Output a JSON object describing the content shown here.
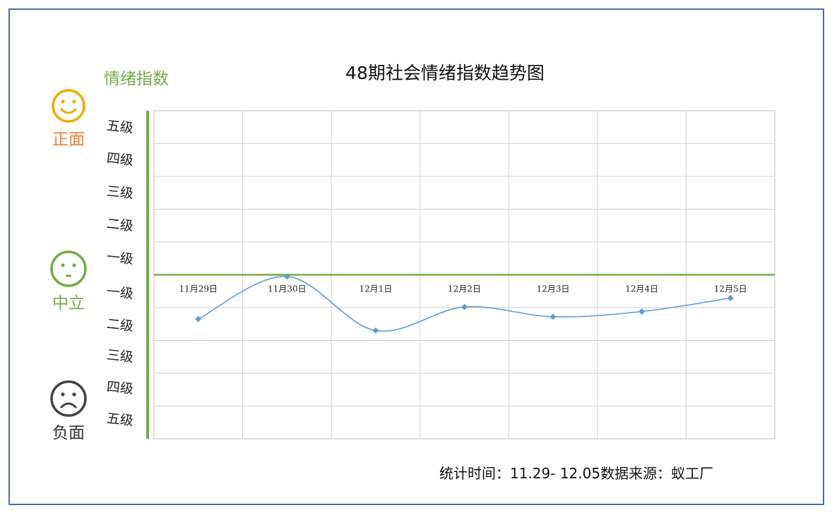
{
  "title": "48期社会情绪指数趋势图",
  "ylabel": "情绪指数",
  "moods": {
    "positive": {
      "label": "正面",
      "color": "#ed7d31",
      "icon": "smiley-happy-icon"
    },
    "neutral": {
      "label": "中立",
      "color": "#70ad47",
      "icon": "smiley-neutral-icon"
    },
    "negative": {
      "label": "负面",
      "color": "#333333",
      "icon": "smiley-sad-icon"
    }
  },
  "levels": {
    "positive": [
      "五级",
      "四级",
      "三级",
      "二级",
      "一级"
    ],
    "negative": [
      "一级",
      "二级",
      "三级",
      "四级",
      "五级"
    ]
  },
  "footer": {
    "period_label": "统计时间：",
    "period_value": "11.29- 12.05",
    "source_label": "数据来源：",
    "source_value": "蚁工厂"
  },
  "chart_data": {
    "type": "line",
    "title": "48期社会情绪指数趋势图",
    "ylabel": "情绪指数",
    "categories": [
      "11月29日",
      "11月30日",
      "12月1日",
      "12月2日",
      "12月3日",
      "12月4日",
      "12月5日"
    ],
    "values": [
      -1.35,
      -0.05,
      -1.7,
      -0.98,
      -1.28,
      -1.12,
      -0.71
    ],
    "ylim": [
      -5,
      5
    ],
    "grid": true,
    "line_color": "#5b9bd5",
    "baseline_color": "#70ad47"
  }
}
